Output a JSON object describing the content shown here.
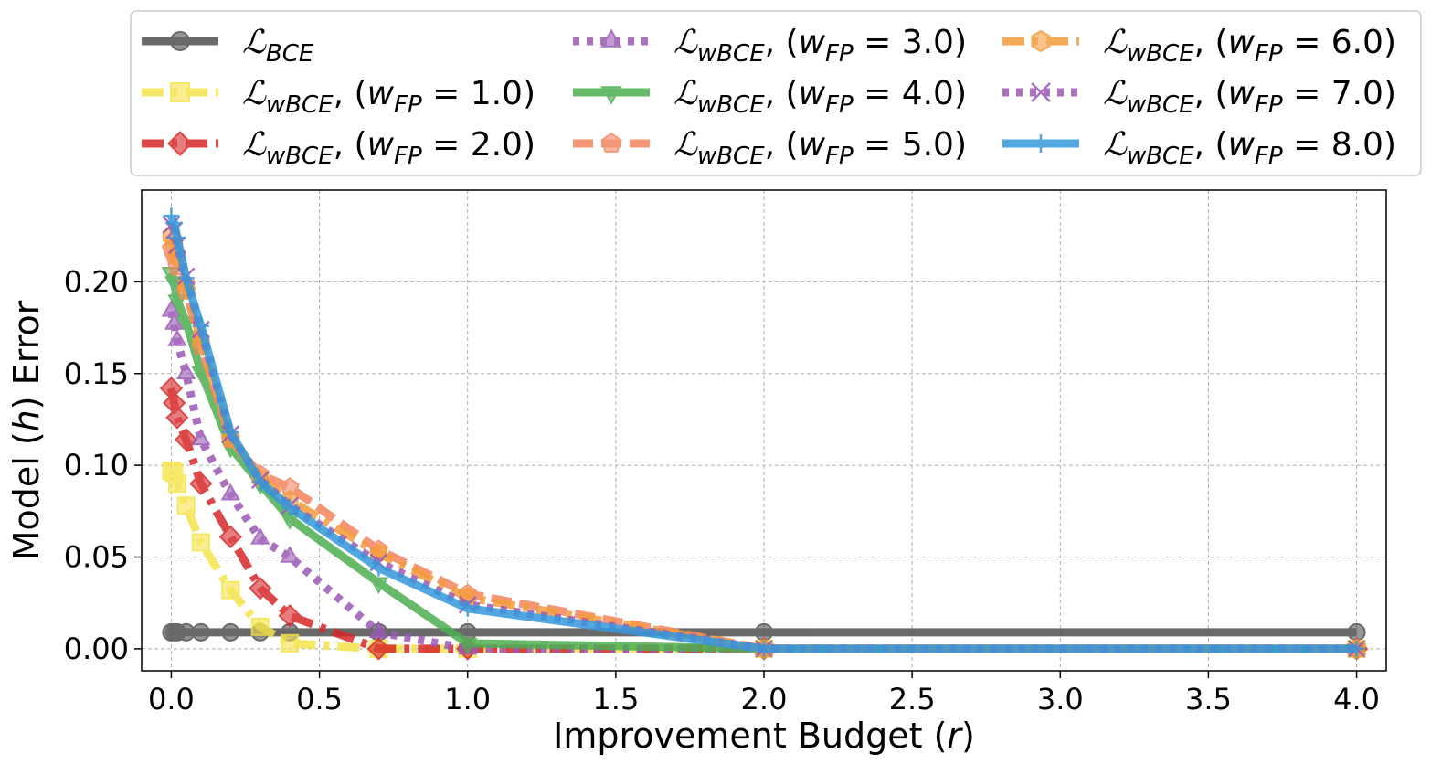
{
  "chart_data": {
    "type": "line",
    "xlabel": "Improvement Budget (r)",
    "ylabel": "Model (h) Error",
    "xlim": [
      -0.1,
      4.1
    ],
    "ylim": [
      -0.012,
      0.25
    ],
    "xticks": [
      0.0,
      0.5,
      1.0,
      1.5,
      2.0,
      2.5,
      3.0,
      3.5,
      4.0
    ],
    "xtick_labels": [
      "0.0",
      "0.5",
      "1.0",
      "1.5",
      "2.0",
      "2.5",
      "3.0",
      "3.5",
      "4.0"
    ],
    "yticks": [
      0.0,
      0.05,
      0.1,
      0.15,
      0.2
    ],
    "ytick_labels": [
      "0.00",
      "0.05",
      "0.10",
      "0.15",
      "0.20"
    ],
    "grid": true,
    "legend_position": "top, outside plot, 3 columns",
    "x": [
      0.0,
      0.01,
      0.02,
      0.05,
      0.1,
      0.2,
      0.3,
      0.4,
      0.7,
      1.0,
      2.0,
      4.0
    ],
    "series": [
      {
        "name": "BCE",
        "label_main": "ℒ",
        "label_sub": "BCE",
        "label_extra": "",
        "color": "#505050",
        "dash": "solid",
        "marker": "circle",
        "values": [
          0.009,
          0.009,
          0.009,
          0.009,
          0.009,
          0.009,
          0.009,
          0.009,
          0.009,
          0.009,
          0.009,
          0.009
        ]
      },
      {
        "name": "wBCE (wFP = 1.0)",
        "label_main": "ℒ",
        "label_sub": "wBCE",
        "label_extra": ", (w",
        "label_extra_sub": "FP",
        "label_tail": " = 1.0)",
        "color": "#f5e44a",
        "dash": "dashdot",
        "marker": "square",
        "values": [
          0.097,
          0.096,
          0.09,
          0.078,
          0.058,
          0.032,
          0.012,
          0.003,
          0.0,
          0.0,
          0.0,
          0.0
        ]
      },
      {
        "name": "wBCE (wFP = 2.0)",
        "label_main": "ℒ",
        "label_sub": "wBCE",
        "label_extra": ", (w",
        "label_extra_sub": "FP",
        "label_tail": " = 2.0)",
        "color": "#d62728",
        "dash": "dashdot",
        "marker": "diamond",
        "values": [
          0.142,
          0.134,
          0.126,
          0.114,
          0.09,
          0.061,
          0.033,
          0.018,
          0.0,
          0.0,
          0.0,
          0.0
        ]
      },
      {
        "name": "wBCE (wFP = 3.0)",
        "label_main": "ℒ",
        "label_sub": "wBCE",
        "label_extra": ", (w",
        "label_extra_sub": "FP",
        "label_tail": " = 3.0)",
        "color": "#9b59b6",
        "dash": "dotted",
        "marker": "triangle-up",
        "values": [
          0.184,
          0.177,
          0.168,
          0.15,
          0.114,
          0.084,
          0.06,
          0.05,
          0.009,
          0.0,
          0.0,
          0.0
        ]
      },
      {
        "name": "wBCE (wFP = 4.0)",
        "label_main": "ℒ",
        "label_sub": "wBCE",
        "label_extra": ", (w",
        "label_extra_sub": "FP",
        "label_tail": " = 4.0)",
        "color": "#4caf50",
        "dash": "solid",
        "marker": "triangle-down",
        "values": [
          0.205,
          0.2,
          0.19,
          0.178,
          0.151,
          0.11,
          0.09,
          0.071,
          0.036,
          0.003,
          0.0,
          0.0
        ]
      },
      {
        "name": "wBCE (wFP = 5.0)",
        "label_main": "ℒ",
        "label_sub": "wBCE",
        "label_extra": ", (w",
        "label_extra_sub": "FP",
        "label_tail": " = 5.0)",
        "color": "#f4845f",
        "dash": "dashed",
        "marker": "pentagon",
        "values": [
          0.218,
          0.214,
          0.208,
          0.195,
          0.165,
          0.114,
          0.095,
          0.088,
          0.054,
          0.03,
          0.0,
          0.0
        ]
      },
      {
        "name": "wBCE (wFP = 6.0)",
        "label_main": "ℒ",
        "label_sub": "wBCE",
        "label_extra": ", (w",
        "label_extra_sub": "FP",
        "label_tail": " = 6.0)",
        "color": "#f39c3a",
        "dash": "dashdot",
        "marker": "hexagon",
        "values": [
          0.225,
          0.22,
          0.214,
          0.198,
          0.168,
          0.115,
          0.093,
          0.081,
          0.052,
          0.028,
          0.0,
          0.0
        ]
      },
      {
        "name": "wBCE (wFP = 7.0)",
        "label_main": "ℒ",
        "label_sub": "wBCE",
        "label_extra": ", (w",
        "label_extra_sub": "FP",
        "label_tail": " = 7.0)",
        "color": "#9b59b6",
        "dash": "dotted",
        "marker": "x",
        "values": [
          0.231,
          0.228,
          0.22,
          0.203,
          0.174,
          0.117,
          0.092,
          0.078,
          0.047,
          0.024,
          0.0,
          0.0
        ]
      },
      {
        "name": "wBCE (wFP = 8.0)",
        "label_main": "ℒ",
        "label_sub": "wBCE",
        "label_extra": ", (w",
        "label_extra_sub": "FP",
        "label_tail": " = 8.0)",
        "color": "#3498db",
        "dash": "solid",
        "marker": "plus",
        "values": [
          0.236,
          0.232,
          0.224,
          0.202,
          0.176,
          0.118,
          0.091,
          0.077,
          0.044,
          0.022,
          0.0,
          0.0
        ]
      }
    ]
  }
}
